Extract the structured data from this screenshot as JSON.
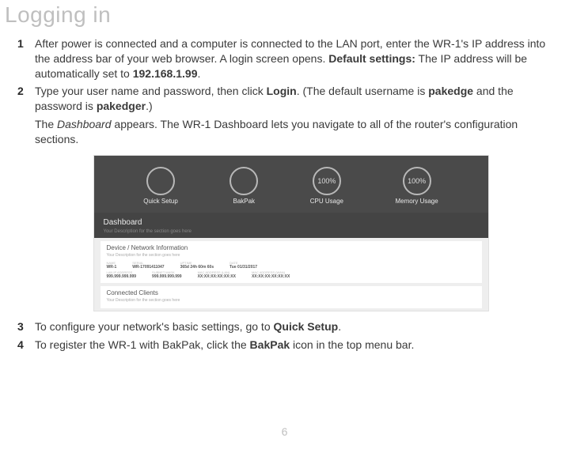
{
  "title": "Logging in",
  "page_number": "6",
  "steps": [
    {
      "num": "1",
      "paras": [
        {
          "segments": [
            {
              "text": "After power is connected and a computer is connected to the LAN port, enter the WR-1's IP address into the address bar of your web browser. A login screen opens. "
            },
            {
              "text": "Default settings:",
              "bold": true
            },
            {
              "text": " The IP address will be automatically set to "
            },
            {
              "text": "192.168.1.99",
              "bold": true
            },
            {
              "text": "."
            }
          ]
        }
      ]
    },
    {
      "num": "2",
      "paras": [
        {
          "segments": [
            {
              "text": "Type your user name and password, then click "
            },
            {
              "text": "Login",
              "bold": true
            },
            {
              "text": ". (The default username is "
            },
            {
              "text": "pakedge",
              "bold": true
            },
            {
              "text": " and the password is "
            },
            {
              "text": "pakedger",
              "bold": true
            },
            {
              "text": ".)"
            }
          ]
        },
        {
          "segments": [
            {
              "text": "The "
            },
            {
              "text": "Dashboard",
              "italic": true
            },
            {
              "text": " appears. The WR-1 Dashboard lets you navigate to all of the router's configuration sections."
            }
          ]
        }
      ],
      "has_image": true
    },
    {
      "num": "3",
      "paras": [
        {
          "segments": [
            {
              "text": "To configure your network's basic settings, go to "
            },
            {
              "text": "Quick Setup",
              "bold": true
            },
            {
              "text": "."
            }
          ]
        }
      ]
    },
    {
      "num": "4",
      "paras": [
        {
          "segments": [
            {
              "text": "To register the WR-1 with BakPak, click the "
            },
            {
              "text": "BakPak",
              "bold": true
            },
            {
              "text": " icon in the top menu bar."
            }
          ]
        }
      ]
    }
  ],
  "dashboard": {
    "top_items": [
      {
        "circle_text": "",
        "label": "Quick Setup"
      },
      {
        "circle_text": "",
        "label": "BakPak"
      },
      {
        "circle_text": "100%",
        "label": "CPU Usage"
      },
      {
        "circle_text": "100%",
        "label": "Memory Usage"
      }
    ],
    "header_title": "Dashboard",
    "header_sub": "Your Description for the section goes here",
    "card1": {
      "title": "Device / Network Information",
      "sub": "Your Description for the section goes here",
      "row1": [
        {
          "lbl": "NAME",
          "val": "WR-1"
        },
        {
          "lbl": "SERIAL",
          "val": "WR-17091411047"
        },
        {
          "lbl": "UPTIME",
          "val": "365d 24h 60m 60s"
        },
        {
          "lbl": "DATE",
          "val": "Tue 01/31/2017"
        }
      ],
      "row2": [
        {
          "lbl": "LAN IP ADDRESS",
          "val": "999.999.999.999"
        },
        {
          "lbl": "SUBNET MASK",
          "val": "999.999.999.999"
        },
        {
          "lbl": "MAC ADDRESS (LAN)",
          "val": "XX:XX:XX:XX:XX:XX"
        },
        {
          "lbl": "MAC ADDRESS (WAN)",
          "val": "XX:XX:XX:XX:XX:XX"
        }
      ]
    },
    "card2": {
      "title": "Connected Clients",
      "sub": "Your Description for the section goes here"
    }
  }
}
